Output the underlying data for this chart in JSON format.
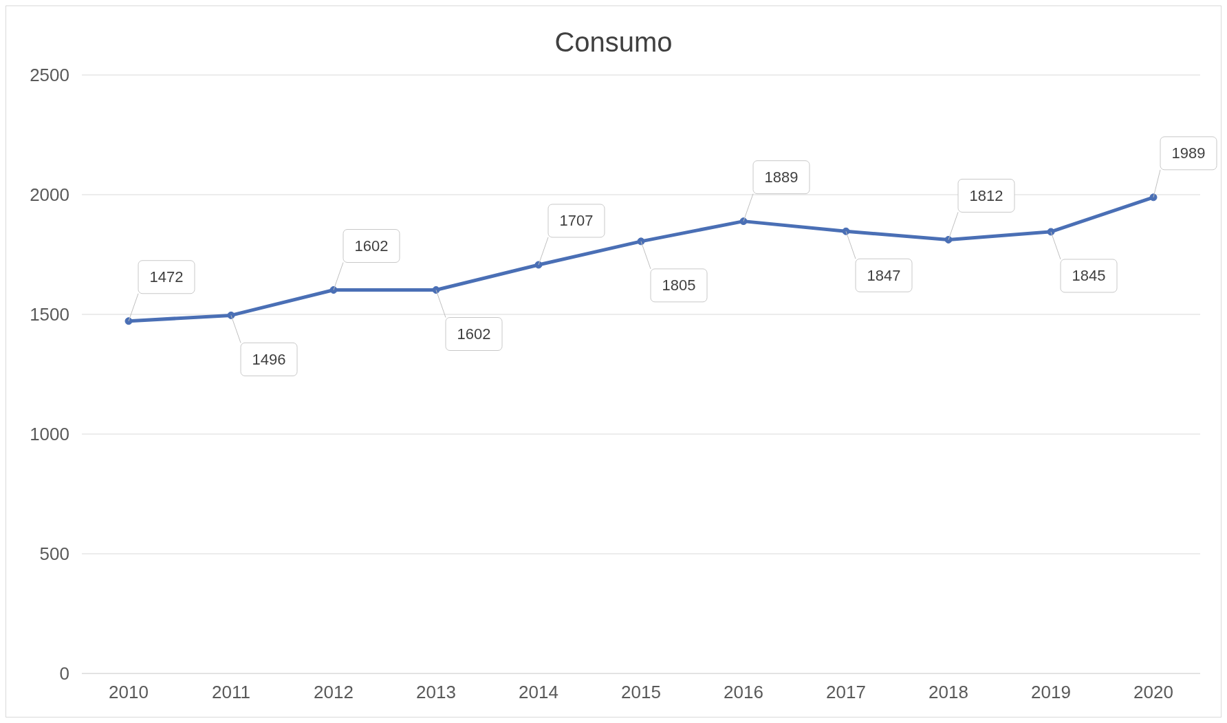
{
  "chart_data": {
    "type": "line",
    "title": "Consumo",
    "categories": [
      "2010",
      "2011",
      "2012",
      "2013",
      "2014",
      "2015",
      "2016",
      "2017",
      "2018",
      "2019",
      "2020"
    ],
    "series": [
      {
        "color": "#4a6fb5",
        "values": [
          1472,
          1496,
          1602,
          1602,
          1707,
          1805,
          1889,
          1847,
          1812,
          1845,
          1989
        ]
      }
    ],
    "ylim": [
      0,
      2500
    ],
    "yticks": [
      0,
      500,
      1000,
      1500,
      2000,
      2500
    ],
    "grid": "y",
    "marker": "circle",
    "line_style": "solid",
    "data_labels": true,
    "legend": false
  }
}
